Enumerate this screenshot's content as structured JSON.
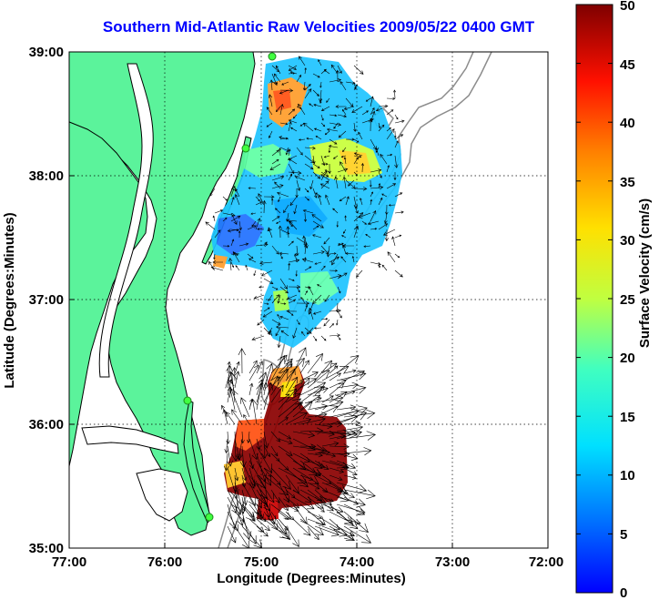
{
  "title": "Southern Mid-Atlantic Raw Velocities 2009/05/22 0400 GMT",
  "axes": {
    "xlabel": "Longitude (Degrees:Minutes)",
    "ylabel": "Latitude (Degrees:Minutes)",
    "x_ticks": [
      "77:00",
      "76:00",
      "75:00",
      "74:00",
      "73:00",
      "72:00"
    ],
    "y_ticks": [
      "39:00",
      "38:00",
      "37:00",
      "36:00",
      "35:00"
    ]
  },
  "colorbar": {
    "label": "Surface Velocity (cm/s)",
    "ticks": [
      "50",
      "45",
      "40",
      "35",
      "30",
      "25",
      "20",
      "15",
      "10",
      "5",
      "0"
    ]
  },
  "colors": {
    "land": "#5bf39b",
    "title": "#0000ff",
    "bathymetry": "#8c8c8c"
  }
}
